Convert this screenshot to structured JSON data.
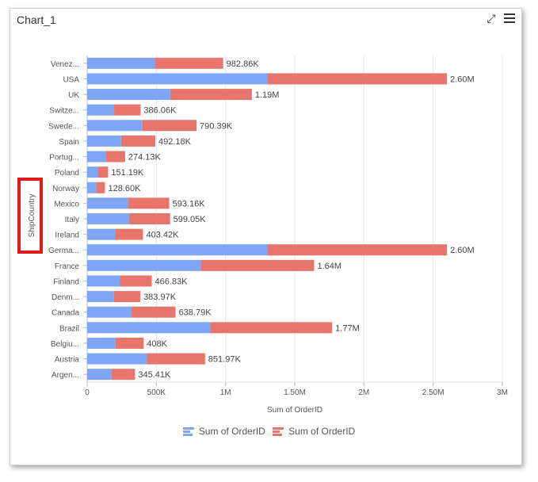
{
  "window": {
    "title": "Chart_1",
    "expand_icon": "expand-icon",
    "menu_icon": "hamburger-menu-icon"
  },
  "colors": {
    "series1": "#7ea6f4",
    "series2": "#e8756b",
    "highlight": "#e01b1b"
  },
  "chart_data": {
    "type": "bar",
    "orientation": "horizontal",
    "stacked": true,
    "categories": [
      "Venez...",
      "USA",
      "UK",
      "Switze...",
      "Swede...",
      "Spain",
      "Portug...",
      "Poland",
      "Norway",
      "Mexico",
      "Italy",
      "Ireland",
      "Germa...",
      "France",
      "Finland",
      "Denm...",
      "Canada",
      "Brazil",
      "Belgiu...",
      "Austria",
      "Argen..."
    ],
    "series": [
      {
        "name": "Sum of OrderID",
        "values": [
          490000,
          1300000,
          600000,
          195000,
          400000,
          245000,
          137000,
          76000,
          65000,
          298000,
          302000,
          203000,
          1300000,
          820000,
          235000,
          193000,
          320000,
          890000,
          205000,
          430000,
          175000
        ]
      },
      {
        "name": "Sum of OrderID",
        "values": [
          492860,
          1300000,
          590000,
          191060,
          390390,
          247180,
          137130,
          75190,
          63600,
          295160,
          297050,
          200420,
          1300000,
          820000,
          231830,
          190970,
          318790,
          880000,
          203000,
          421970,
          170410
        ]
      }
    ],
    "data_labels": [
      "982.86K",
      "2.60M",
      "1.19M",
      "386.06K",
      "790.39K",
      "492.18K",
      "274.13K",
      "151.19K",
      "128.60K",
      "593.16K",
      "599.05K",
      "403.42K",
      "2.60M",
      "1.64M",
      "466.83K",
      "383.97K",
      "638.79K",
      "1.77M",
      "408K",
      "851.97K",
      "345.41K"
    ],
    "xlabel": "Sum of OrderID",
    "ylabel": "ShipCountry",
    "xlim": [
      0,
      3000000
    ],
    "xticks": [
      0,
      500000,
      1000000,
      1500000,
      2000000,
      2500000,
      3000000
    ],
    "xtick_labels": [
      "0",
      "500K",
      "1M",
      "1.50M",
      "2M",
      "2.50M",
      "3M"
    ],
    "grid": true,
    "legend_position": "bottom"
  }
}
